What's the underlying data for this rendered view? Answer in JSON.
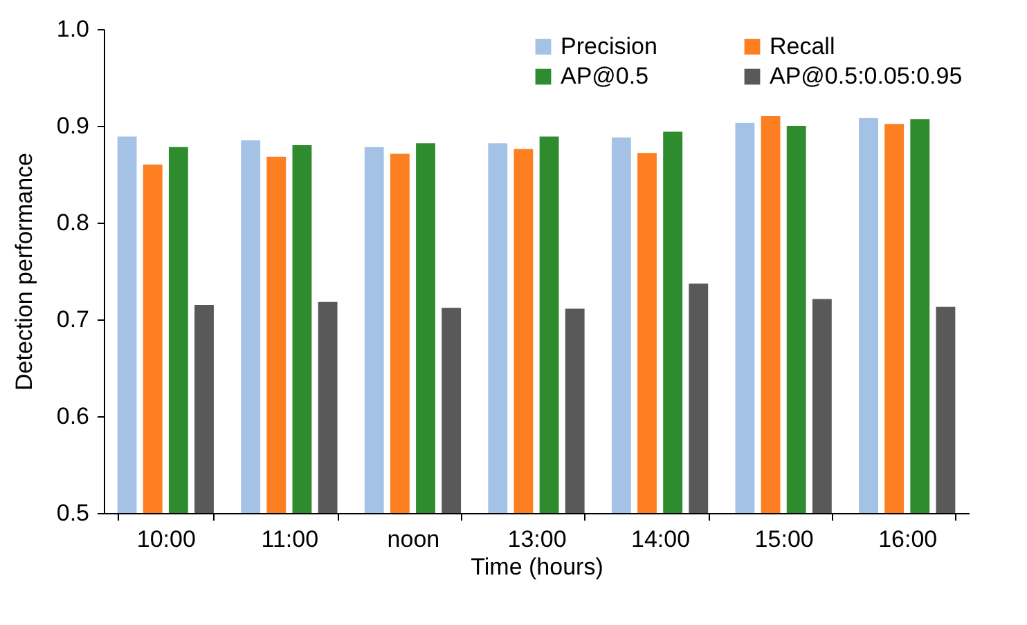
{
  "chart_data": {
    "type": "bar",
    "xlabel": "Time (hours)",
    "ylabel": "Detection performance",
    "categories": [
      "10:00",
      "11:00",
      "noon",
      "13:00",
      "14:00",
      "15:00",
      "16:00"
    ],
    "series": [
      {
        "name": "Precision",
        "color": "#a4c2e6",
        "values": [
          0.889,
          0.885,
          0.878,
          0.882,
          0.888,
          0.903,
          0.908
        ]
      },
      {
        "name": "Recall",
        "color": "#fd7f22",
        "values": [
          0.86,
          0.868,
          0.871,
          0.876,
          0.872,
          0.91,
          0.902
        ]
      },
      {
        "name": "AP@0.5",
        "color": "#2e8b2e",
        "values": [
          0.878,
          0.88,
          0.882,
          0.889,
          0.894,
          0.9,
          0.907
        ]
      },
      {
        "name": "AP@0.5:0.05:0.95",
        "color": "#595959",
        "values": [
          0.715,
          0.718,
          0.712,
          0.711,
          0.737,
          0.721,
          0.713
        ]
      }
    ],
    "ylim": [
      0.5,
      1.0
    ],
    "yticks": [
      0.5,
      0.6,
      0.7,
      0.8,
      0.9,
      {
        "value": 1.0,
        "label": "1.0"
      }
    ],
    "grid": false,
    "legend": "top right"
  }
}
